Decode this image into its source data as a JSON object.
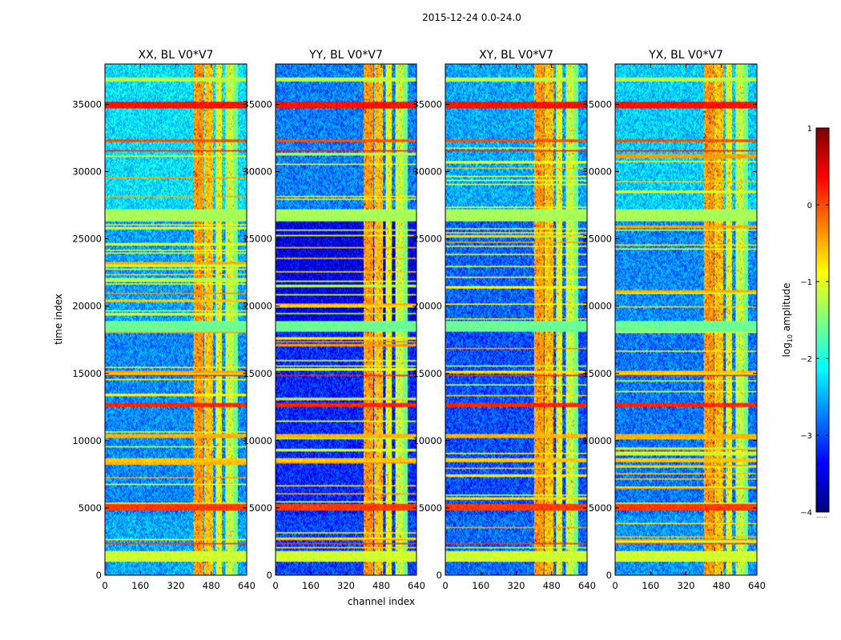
{
  "figure": {
    "suptitle": "2015-12-24 0.0-24.0"
  },
  "chart_data": {
    "type": "heatmap",
    "title": "2015-12-24 0.0-24.0",
    "xlabel": "channel index",
    "ylabel": "time index",
    "xlim": [
      0,
      640
    ],
    "ylim": [
      0,
      38000
    ],
    "x_ticks": [
      "0",
      "160",
      "320",
      "480",
      "640"
    ],
    "y_ticks": [
      "0",
      "5000",
      "10000",
      "15000",
      "20000",
      "25000",
      "30000",
      "35000"
    ],
    "panels": [
      {
        "title": "XX, BL V0*V7",
        "baseline": -2.7,
        "show_ylabel": true
      },
      {
        "title": "YY, BL V0*V7",
        "baseline": -3.2,
        "show_xlabel": true
      },
      {
        "title": "XY, BL V0*V7",
        "baseline": -3.0
      },
      {
        "title": "YX, BL V0*V7",
        "baseline": -2.8
      }
    ],
    "colorbar": {
      "label_main": "log",
      "label_sub": "10",
      "label_rest": " amplitude",
      "range": [
        -4,
        1
      ],
      "ticks": [
        "−4",
        "−3",
        "−2",
        "−1",
        "0",
        "1"
      ],
      "tick_values": [
        -4,
        -3,
        -2,
        -1,
        0,
        1
      ],
      "colormap": "jet"
    },
    "rfi_channel_bands": [
      {
        "x0": 400,
        "x1": 445,
        "level": -0.4
      },
      {
        "x0": 448,
        "x1": 490,
        "level": -0.6
      },
      {
        "x0": 500,
        "x1": 530,
        "level": -1.0
      },
      {
        "x0": 545,
        "x1": 580,
        "level": -1.2
      }
    ],
    "flagged_time_bands": [
      {
        "t0": 26300,
        "t1": 27200,
        "level": -1.3
      },
      {
        "t0": 18100,
        "t1": 18900,
        "level": -1.6
      },
      {
        "t0": 4800,
        "t1": 5300,
        "level": 0.1
      },
      {
        "t0": 34700,
        "t1": 35200,
        "level": 0.3
      },
      {
        "t0": 36700,
        "t1": 37000,
        "level": -1.2
      },
      {
        "t0": 12500,
        "t1": 12800,
        "level": 0.2
      },
      {
        "t0": 10200,
        "t1": 10500,
        "level": -0.5
      },
      {
        "t0": 1000,
        "t1": 1800,
        "level": -1.1
      },
      {
        "t0": 31500,
        "t1": 31600,
        "level": 0.2
      },
      {
        "t0": 32200,
        "t1": 32400,
        "level": 0.0
      },
      {
        "t0": 14800,
        "t1": 14900,
        "level": 0.2
      },
      {
        "t0": 8400,
        "t1": 8700,
        "level": -0.6
      },
      {
        "t0": 2300,
        "t1": 2400,
        "level": 0.1
      }
    ]
  }
}
